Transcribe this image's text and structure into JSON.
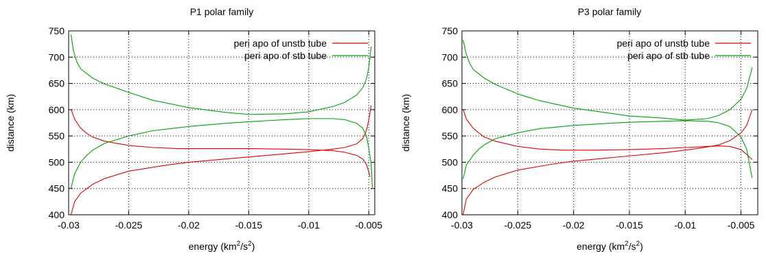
{
  "chart_data": [
    {
      "type": "line",
      "title": "P1 polar family",
      "xlabel": "energy (km",
      "xlabel_sup1": "2",
      "xlabel_mid": "/s",
      "xlabel_sup2": "2",
      "xlabel_end": ")",
      "ylabel": "distance (km)",
      "xlim": [
        -0.03,
        -0.0045
      ],
      "ylim": [
        400,
        750
      ],
      "xticks": [
        -0.03,
        -0.025,
        -0.02,
        -0.015,
        -0.01,
        -0.005
      ],
      "xtick_labels": [
        "-0.03",
        "-0.025",
        "-0.02",
        "-0.015",
        "-0.01",
        "-0.005"
      ],
      "yticks": [
        400,
        450,
        500,
        550,
        600,
        650,
        700,
        750
      ],
      "ytick_labels": [
        "400",
        "450",
        "500",
        "550",
        "600",
        "650",
        "700",
        "750"
      ],
      "grid": true,
      "legend_position": "top-right",
      "series": [
        {
          "name": "peri  apo of unstb tube",
          "color": "#e00000",
          "curves": [
            [
              [
                -0.0298,
                400
              ],
              [
                -0.0295,
                425
              ],
              [
                -0.029,
                441
              ],
              [
                -0.028,
                458
              ],
              [
                -0.027,
                469
              ],
              [
                -0.025,
                483
              ],
              [
                -0.022,
                494
              ],
              [
                -0.02,
                500
              ],
              [
                -0.017,
                506
              ],
              [
                -0.015,
                510
              ],
              [
                -0.012,
                516
              ],
              [
                -0.01,
                520
              ],
              [
                -0.008,
                525
              ],
              [
                -0.007,
                528
              ],
              [
                -0.006,
                535
              ],
              [
                -0.0055,
                545
              ],
              [
                -0.0052,
                560
              ],
              [
                -0.005,
                580
              ],
              [
                -0.0048,
                608
              ]
            ],
            [
              [
                -0.0298,
                601
              ],
              [
                -0.0295,
                582
              ],
              [
                -0.029,
                565
              ],
              [
                -0.0285,
                555
              ],
              [
                -0.028,
                548
              ],
              [
                -0.027,
                540
              ],
              [
                -0.025,
                532
              ],
              [
                -0.023,
                528
              ],
              [
                -0.021,
                526
              ],
              [
                -0.018,
                526
              ],
              [
                -0.015,
                526
              ],
              [
                -0.012,
                525
              ],
              [
                -0.01,
                524
              ],
              [
                -0.008,
                522
              ],
              [
                -0.007,
                519
              ],
              [
                -0.006,
                513
              ],
              [
                -0.0055,
                506
              ],
              [
                -0.0052,
                496
              ],
              [
                -0.005,
                482
              ],
              [
                -0.0049,
                472
              ]
            ]
          ]
        },
        {
          "name": "peri  apo of stb tube",
          "color": "#00a000",
          "curves": [
            [
              [
                -0.0298,
                451
              ],
              [
                -0.0295,
                478
              ],
              [
                -0.029,
                500
              ],
              [
                -0.0285,
                513
              ],
              [
                -0.028,
                523
              ],
              [
                -0.027,
                536
              ],
              [
                -0.025,
                550
              ],
              [
                -0.023,
                560
              ],
              [
                -0.02,
                568
              ],
              [
                -0.017,
                574
              ],
              [
                -0.015,
                577
              ],
              [
                -0.012,
                581
              ],
              [
                -0.01,
                583
              ],
              [
                -0.008,
                583
              ],
              [
                -0.007,
                581
              ],
              [
                -0.006,
                574
              ],
              [
                -0.0055,
                565
              ],
              [
                -0.0052,
                550
              ],
              [
                -0.005,
                527
              ],
              [
                -0.0048,
                497
              ],
              [
                -0.0047,
                452
              ]
            ],
            [
              [
                -0.0298,
                743
              ],
              [
                -0.0296,
                712
              ],
              [
                -0.0293,
                690
              ],
              [
                -0.029,
                678
              ],
              [
                -0.028,
                660
              ],
              [
                -0.027,
                649
              ],
              [
                -0.025,
                633
              ],
              [
                -0.023,
                618
              ],
              [
                -0.02,
                604
              ],
              [
                -0.017,
                595
              ],
              [
                -0.015,
                591
              ],
              [
                -0.012,
                592
              ],
              [
                -0.01,
                596
              ],
              [
                -0.008,
                606
              ],
              [
                -0.007,
                614
              ],
              [
                -0.006,
                628
              ],
              [
                -0.0055,
                642
              ],
              [
                -0.0052,
                658
              ],
              [
                -0.005,
                680
              ],
              [
                -0.0048,
                720
              ]
            ]
          ]
        }
      ]
    },
    {
      "type": "line",
      "title": "P3 polar family",
      "xlabel": "energy (km",
      "xlabel_sup1": "2",
      "xlabel_mid": "/s",
      "xlabel_sup2": "2",
      "xlabel_end": ")",
      "ylabel": "distance (km)",
      "xlim": [
        -0.03,
        -0.0035
      ],
      "ylim": [
        400,
        750
      ],
      "xticks": [
        -0.03,
        -0.025,
        -0.02,
        -0.015,
        -0.01,
        -0.005
      ],
      "xtick_labels": [
        "-0.03",
        "-0.025",
        "-0.02",
        "-0.015",
        "-0.01",
        "-0.005"
      ],
      "yticks": [
        400,
        450,
        500,
        550,
        600,
        650,
        700,
        750
      ],
      "ytick_labels": [
        "400",
        "450",
        "500",
        "550",
        "600",
        "650",
        "700",
        "750"
      ],
      "grid": true,
      "legend_position": "top-right",
      "series": [
        {
          "name": "peri  apo of unstb tube",
          "color": "#e00000",
          "curves": [
            [
              [
                -0.0299,
                400
              ],
              [
                -0.0296,
                430
              ],
              [
                -0.029,
                448
              ],
              [
                -0.028,
                462
              ],
              [
                -0.027,
                472
              ],
              [
                -0.025,
                485
              ],
              [
                -0.022,
                496
              ],
              [
                -0.02,
                502
              ],
              [
                -0.017,
                508
              ],
              [
                -0.015,
                512
              ],
              [
                -0.012,
                518
              ],
              [
                -0.01,
                523
              ],
              [
                -0.008,
                529
              ],
              [
                -0.007,
                533
              ],
              [
                -0.006,
                541
              ],
              [
                -0.005,
                556
              ],
              [
                -0.0045,
                570
              ],
              [
                -0.004,
                600
              ]
            ],
            [
              [
                -0.0299,
                601
              ],
              [
                -0.0296,
                582
              ],
              [
                -0.029,
                565
              ],
              [
                -0.0285,
                556
              ],
              [
                -0.028,
                548
              ],
              [
                -0.027,
                540
              ],
              [
                -0.025,
                530
              ],
              [
                -0.023,
                525
              ],
              [
                -0.021,
                523
              ],
              [
                -0.018,
                523
              ],
              [
                -0.015,
                524
              ],
              [
                -0.012,
                526
              ],
              [
                -0.01,
                528
              ],
              [
                -0.008,
                530
              ],
              [
                -0.007,
                531
              ],
              [
                -0.006,
                530
              ],
              [
                -0.005,
                524
              ],
              [
                -0.0045,
                515
              ],
              [
                -0.004,
                505
              ]
            ]
          ]
        },
        {
          "name": "peri  apo of stb tube",
          "color": "#00a000",
          "curves": [
            [
              [
                -0.0299,
                468
              ],
              [
                -0.0296,
                495
              ],
              [
                -0.029,
                513
              ],
              [
                -0.0285,
                525
              ],
              [
                -0.028,
                533
              ],
              [
                -0.027,
                545
              ],
              [
                -0.025,
                556
              ],
              [
                -0.023,
                564
              ],
              [
                -0.02,
                570
              ],
              [
                -0.017,
                574
              ],
              [
                -0.015,
                576
              ],
              [
                -0.012,
                578
              ],
              [
                -0.01,
                579
              ],
              [
                -0.008,
                578
              ],
              [
                -0.007,
                575
              ],
              [
                -0.006,
                568
              ],
              [
                -0.005,
                548
              ],
              [
                -0.0045,
                525
              ],
              [
                -0.004,
                470
              ]
            ],
            [
              [
                -0.0299,
                733
              ],
              [
                -0.0296,
                705
              ],
              [
                -0.0293,
                688
              ],
              [
                -0.029,
                677
              ],
              [
                -0.028,
                660
              ],
              [
                -0.027,
                648
              ],
              [
                -0.025,
                630
              ],
              [
                -0.023,
                617
              ],
              [
                -0.02,
                603
              ],
              [
                -0.017,
                594
              ],
              [
                -0.015,
                588
              ],
              [
                -0.012,
                584
              ],
              [
                -0.01,
                580
              ],
              [
                -0.008,
                583
              ],
              [
                -0.007,
                589
              ],
              [
                -0.006,
                600
              ],
              [
                -0.005,
                620
              ],
              [
                -0.0045,
                640
              ],
              [
                -0.004,
                680
              ]
            ]
          ]
        }
      ]
    }
  ]
}
